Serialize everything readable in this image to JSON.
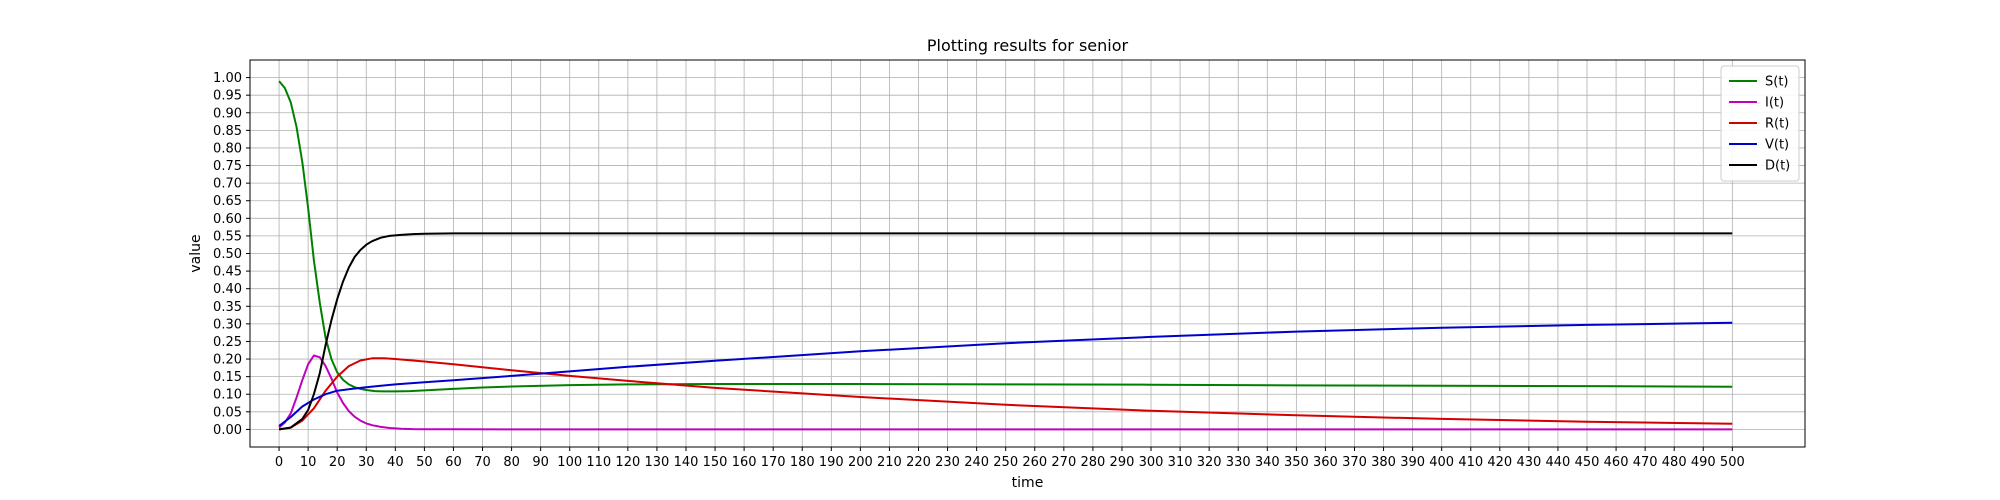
{
  "chart_data": {
    "type": "line",
    "title": "Plotting results for senior",
    "xlabel": "time",
    "ylabel": "value",
    "xlim": [
      -10,
      525
    ],
    "ylim": [
      -0.05,
      1.05
    ],
    "grid": true,
    "legend_position": "top-right",
    "x_ticks": [
      0,
      10,
      20,
      30,
      40,
      50,
      60,
      70,
      80,
      90,
      100,
      110,
      120,
      130,
      140,
      150,
      160,
      170,
      180,
      190,
      200,
      210,
      220,
      230,
      240,
      250,
      260,
      270,
      280,
      290,
      300,
      310,
      320,
      330,
      340,
      350,
      360,
      370,
      380,
      390,
      400,
      410,
      420,
      430,
      440,
      450,
      460,
      470,
      480,
      490,
      500
    ],
    "y_ticks": [
      "0.00",
      "0.05",
      "0.10",
      "0.15",
      "0.20",
      "0.25",
      "0.30",
      "0.35",
      "0.40",
      "0.45",
      "0.50",
      "0.55",
      "0.60",
      "0.65",
      "0.70",
      "0.75",
      "0.80",
      "0.85",
      "0.90",
      "0.95",
      "1.00"
    ],
    "series": [
      {
        "name": "S(t)",
        "color": "#008000",
        "x": [
          0,
          2,
          4,
          6,
          8,
          10,
          12,
          14,
          16,
          18,
          20,
          22,
          24,
          26,
          28,
          30,
          33,
          36,
          40,
          45,
          50,
          60,
          70,
          80,
          100,
          120,
          150,
          200,
          250,
          300,
          350,
          400,
          450,
          500
        ],
        "y": [
          0.99,
          0.97,
          0.93,
          0.86,
          0.76,
          0.63,
          0.48,
          0.36,
          0.26,
          0.2,
          0.162,
          0.141,
          0.128,
          0.12,
          0.115,
          0.112,
          0.109,
          0.108,
          0.108,
          0.109,
          0.111,
          0.115,
          0.119,
          0.122,
          0.126,
          0.128,
          0.129,
          0.129,
          0.128,
          0.127,
          0.125,
          0.124,
          0.123,
          0.121
        ]
      },
      {
        "name": "I(t)",
        "color": "#bf00bf",
        "x": [
          0,
          2,
          4,
          6,
          8,
          10,
          12,
          14,
          16,
          18,
          20,
          22,
          24,
          26,
          28,
          30,
          32,
          35,
          38,
          42,
          46,
          50,
          60,
          80,
          100,
          150,
          200,
          300,
          400,
          500
        ],
        "y": [
          0.005,
          0.02,
          0.045,
          0.09,
          0.14,
          0.185,
          0.21,
          0.205,
          0.18,
          0.145,
          0.105,
          0.075,
          0.052,
          0.036,
          0.025,
          0.017,
          0.012,
          0.007,
          0.004,
          0.002,
          0.001,
          0.0005,
          0.0002,
          0.0,
          0.0,
          0.0,
          0.0,
          0.0,
          0.0,
          0.0
        ]
      },
      {
        "name": "R(t)",
        "color": "#d40000",
        "x": [
          0,
          4,
          8,
          12,
          16,
          20,
          24,
          28,
          32,
          36,
          40,
          50,
          60,
          80,
          100,
          120,
          150,
          200,
          250,
          300,
          350,
          400,
          450,
          500
        ],
        "y": [
          0.0,
          0.005,
          0.025,
          0.06,
          0.11,
          0.15,
          0.18,
          0.196,
          0.202,
          0.202,
          0.2,
          0.193,
          0.185,
          0.168,
          0.152,
          0.138,
          0.118,
          0.092,
          0.07,
          0.053,
          0.04,
          0.03,
          0.022,
          0.016
        ]
      },
      {
        "name": "V(t)",
        "color": "#0000cc",
        "x": [
          0,
          4,
          8,
          12,
          16,
          20,
          25,
          30,
          35,
          40,
          50,
          60,
          80,
          100,
          120,
          150,
          200,
          250,
          300,
          350,
          400,
          450,
          500
        ],
        "y": [
          0.01,
          0.035,
          0.065,
          0.085,
          0.1,
          0.11,
          0.115,
          0.12,
          0.124,
          0.128,
          0.134,
          0.14,
          0.152,
          0.165,
          0.178,
          0.195,
          0.222,
          0.245,
          0.263,
          0.278,
          0.289,
          0.297,
          0.303
        ]
      },
      {
        "name": "D(t)",
        "color": "#000000",
        "x": [
          0,
          4,
          8,
          10,
          12,
          14,
          16,
          18,
          20,
          22,
          24,
          26,
          28,
          30,
          32,
          35,
          38,
          42,
          46,
          50,
          60,
          80,
          100,
          200,
          300,
          400,
          500
        ],
        "y": [
          0.0,
          0.005,
          0.03,
          0.055,
          0.1,
          0.16,
          0.24,
          0.31,
          0.37,
          0.42,
          0.46,
          0.49,
          0.51,
          0.525,
          0.535,
          0.545,
          0.55,
          0.553,
          0.555,
          0.556,
          0.557,
          0.557,
          0.557,
          0.557,
          0.557,
          0.557,
          0.557
        ]
      }
    ]
  }
}
